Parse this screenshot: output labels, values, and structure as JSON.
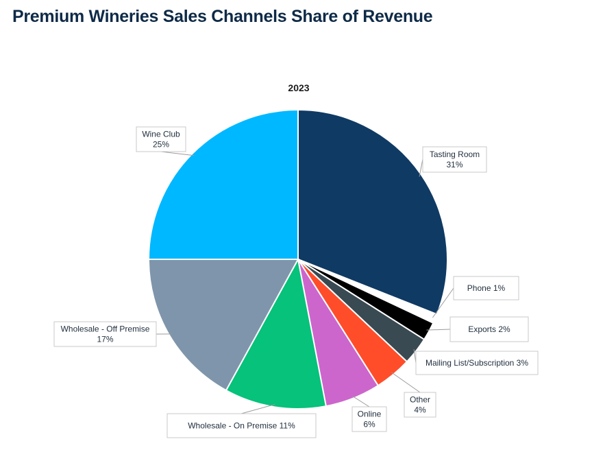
{
  "page": {
    "title": "Premium Wineries Sales Channels Share of Revenue"
  },
  "chart_data": {
    "type": "pie",
    "title": "2023",
    "start_angle_deg": 0,
    "direction": "clockwise",
    "slices": [
      {
        "name": "Tasting Room",
        "value": 31,
        "label": [
          "Tasting Room",
          "31%"
        ],
        "color": "#0f3a64"
      },
      {
        "name": "Phone",
        "value": 1,
        "label": [
          "Phone 1%"
        ],
        "color": "#ffffff"
      },
      {
        "name": "Exports",
        "value": 2,
        "label": [
          "Exports 2%"
        ],
        "color": "#000000"
      },
      {
        "name": "Mailing List/Subscription",
        "value": 3,
        "label": [
          "Mailing List/Subscription 3%"
        ],
        "color": "#3a4a52"
      },
      {
        "name": "Other",
        "value": 4,
        "label": [
          "Other",
          "4%"
        ],
        "color": "#ff4d2a"
      },
      {
        "name": "Online",
        "value": 6,
        "label": [
          "Online",
          "6%"
        ],
        "color": "#cc66cc"
      },
      {
        "name": "Wholesale - On Premise",
        "value": 11,
        "label": [
          "Wholesale - On Premise 11%"
        ],
        "color": "#06c27a"
      },
      {
        "name": "Wholesale - Off Premise",
        "value": 17,
        "label": [
          "Wholesale - Off Premise",
          "17%"
        ],
        "color": "#7f95ab"
      },
      {
        "name": "Wine Club",
        "value": 25,
        "label": [
          "Wine Club",
          "25%"
        ],
        "color": "#00b8ff"
      }
    ],
    "legend": "none"
  }
}
